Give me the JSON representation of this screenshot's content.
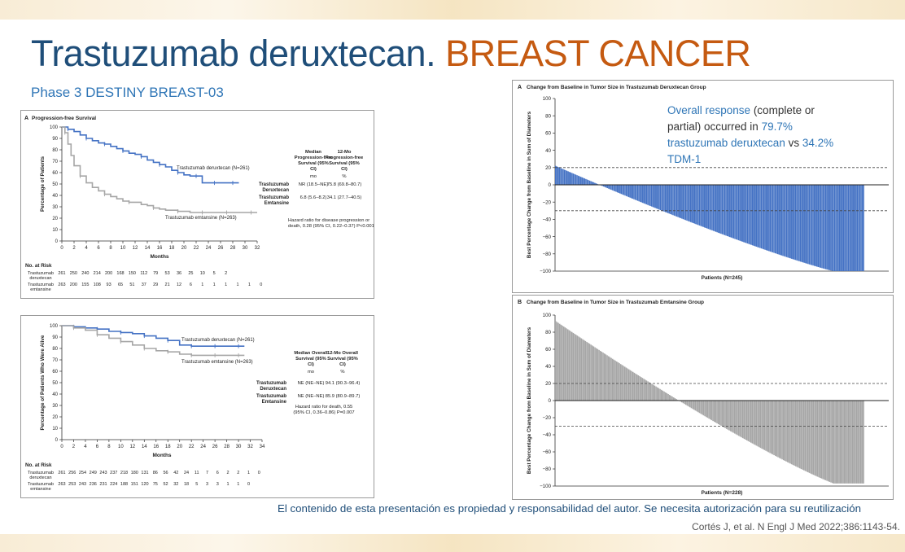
{
  "slide": {
    "title_main": "Trastuzumab deruxtecan.",
    "title_accent": "BREAST CANCER",
    "subtitle": "Phase 3 DESTINY BREAST-03",
    "footer": "El contenido de esta presentación es propiedad y responsabilidad del autor. Se necesita autorización para su reutilización",
    "citation": "Cortés J, et al. N Engl J Med 2022;386:1143-54."
  },
  "colors": {
    "title_main": "#1f4e79",
    "title_accent": "#c55a11",
    "subtitle": "#2e75b6",
    "deruxtecan": "#4472c4",
    "emtansine": "#a6a6a6",
    "callout": "#2e75b6"
  },
  "chart_data": [
    {
      "type": "line",
      "panel_label": "A",
      "title": "Progression-free Survival",
      "xlabel": "Months",
      "ylabel": "Percentage of Patients",
      "xlim": [
        0,
        32
      ],
      "ylim": [
        0,
        100
      ],
      "x_ticks": [
        "0",
        "2",
        "4",
        "6",
        "8",
        "10",
        "12",
        "14",
        "16",
        "18",
        "20",
        "22",
        "24",
        "26",
        "28",
        "30",
        "32"
      ],
      "y_ticks": [
        "0",
        "10",
        "20",
        "30",
        "40",
        "50",
        "60",
        "70",
        "80",
        "90",
        "100"
      ],
      "series": [
        {
          "name": "Trastuzumab deruxtecan (N=261)",
          "x": [
            0,
            1,
            2,
            3,
            4,
            5,
            6,
            7,
            8,
            9,
            10,
            11,
            12,
            13,
            14,
            15,
            16,
            17,
            18,
            19,
            20,
            21,
            22,
            23,
            24,
            25,
            26,
            27,
            28,
            29
          ],
          "y": [
            100,
            98,
            96,
            93,
            90,
            88,
            86,
            85,
            83,
            81,
            79,
            77,
            76,
            74,
            71,
            69,
            67,
            65,
            62,
            60,
            58,
            57,
            57,
            51,
            51,
            51,
            51,
            51,
            51,
            51
          ]
        },
        {
          "name": "Trastuzumab emtansine (N=263)",
          "x": [
            0,
            0.5,
            1,
            1.5,
            2,
            3,
            4,
            5,
            6,
            7,
            8,
            9,
            10,
            11,
            12,
            13,
            14,
            15,
            16,
            17,
            18,
            19,
            20,
            21,
            22,
            23,
            24,
            25,
            26,
            27,
            28,
            29,
            30,
            31,
            32
          ],
          "y": [
            100,
            95,
            85,
            75,
            66,
            57,
            51,
            47,
            44,
            41,
            39,
            37,
            35,
            34,
            34,
            32,
            31,
            29,
            28,
            27,
            27,
            26,
            26,
            25,
            25,
            25,
            25,
            25,
            25,
            25,
            25,
            25,
            25,
            25,
            25
          ]
        }
      ],
      "table": {
        "headers": [
          "Median Progression-free Survival (95% CI)",
          "12-Mo Progression-free Survival (95% CI)"
        ],
        "units": [
          "mo",
          "%"
        ],
        "rows": [
          {
            "label": "Trastuzumab Deruxtecan",
            "label_lines": [
              "Trastuzumab",
              "Deruxtecan"
            ],
            "values": [
              "NR (18.5–NE)",
              "75.8 (69.8–80.7)"
            ]
          },
          {
            "label": "Trastuzumab Emtansine",
            "label_lines": [
              "Trastuzumab",
              "Emtansine"
            ],
            "values": [
              "6.8 (5.6–8.2)",
              "34.1 (27.7–40.5)"
            ]
          }
        ],
        "hazard": "Hazard ratio for disease progression or death, 0.28 (95% CI, 0.22–0.37) P<0.001"
      },
      "at_risk": {
        "title": "No. at Risk",
        "rows": [
          {
            "label": "Trastuzumab deruxtecan",
            "values": [
              "261",
              "250",
              "240",
              "214",
              "200",
              "168",
              "150",
              "112",
              "79",
              "53",
              "36",
              "25",
              "10",
              "5",
              "2"
            ]
          },
          {
            "label": "Trastuzumab emtansine",
            "values": [
              "263",
              "200",
              "155",
              "108",
              "93",
              "65",
              "51",
              "37",
              "29",
              "21",
              "12",
              "6",
              "1",
              "1",
              "1",
              "1",
              "1",
              "0"
            ]
          }
        ]
      }
    },
    {
      "type": "line",
      "panel_label": "",
      "title": "",
      "xlabel": "Months",
      "ylabel": "Percentage of Patients Who Were Alive",
      "xlim": [
        0,
        34
      ],
      "ylim": [
        0,
        100
      ],
      "x_ticks": [
        "0",
        "2",
        "4",
        "6",
        "8",
        "10",
        "12",
        "14",
        "16",
        "18",
        "20",
        "22",
        "24",
        "26",
        "28",
        "30",
        "32",
        "34"
      ],
      "y_ticks": [
        "0",
        "10",
        "20",
        "30",
        "40",
        "50",
        "60",
        "70",
        "80",
        "90",
        "100"
      ],
      "series": [
        {
          "name": "Trastuzumab deruxtecan (N=261)",
          "x": [
            0,
            2,
            4,
            6,
            8,
            10,
            12,
            14,
            16,
            18,
            20,
            22,
            24,
            26,
            28,
            30,
            31
          ],
          "y": [
            100,
            99,
            98,
            97,
            95,
            94,
            93,
            91,
            89,
            87,
            83,
            82,
            82,
            82,
            82,
            82,
            82
          ]
        },
        {
          "name": "Trastuzumab emtansine (N=263)",
          "x": [
            0,
            2,
            4,
            6,
            8,
            10,
            12,
            14,
            16,
            18,
            20,
            22,
            24,
            26,
            28,
            30,
            31
          ],
          "y": [
            100,
            98,
            96,
            92,
            89,
            86,
            83,
            80,
            78,
            77,
            75,
            74,
            74,
            74,
            74,
            74,
            74
          ]
        }
      ],
      "table": {
        "headers": [
          "Median Overall Survival (95% CI)",
          "12-Mo Overall Survival (95% CI)"
        ],
        "units": [
          "mo",
          "%"
        ],
        "rows": [
          {
            "label": "Trastuzumab Deruxtecan",
            "label_lines": [
              "Trastuzumab",
              "Deruxtecan"
            ],
            "values": [
              "NE (NE–NE)",
              "94.1 (90.3–96.4)"
            ]
          },
          {
            "label": "Trastuzumab Emtansine",
            "label_lines": [
              "Trastuzumab",
              "Emtansine"
            ],
            "values": [
              "NE (NE–NE)",
              "85.9 (80.9–89.7)"
            ]
          }
        ],
        "hazard": "Hazard ratio for death, 0.55 (95% CI, 0.36–0.86) P=0.007"
      },
      "at_risk": {
        "title": "No. at Risk",
        "rows": [
          {
            "label": "Trastuzumab deruxtecan",
            "values": [
              "261",
              "256",
              "254",
              "249",
              "243",
              "237",
              "218",
              "180",
              "131",
              "86",
              "56",
              "42",
              "24",
              "11",
              "7",
              "6",
              "2",
              "2",
              "1",
              "0"
            ]
          },
          {
            "label": "Trastuzumab emtansine",
            "values": [
              "263",
              "253",
              "243",
              "236",
              "231",
              "224",
              "188",
              "151",
              "120",
              "75",
              "52",
              "32",
              "18",
              "5",
              "3",
              "3",
              "1",
              "1",
              "0"
            ]
          }
        ]
      }
    },
    {
      "type": "bar",
      "panel_label": "A",
      "title": "Change from Baseline in Tumor Size in Trastuzumab Deruxtecan Group",
      "xlabel": "Patients (N=245)",
      "ylabel": "Best Percentage Change from Baseline in Sum of Diameters",
      "ylim": [
        -100,
        100
      ],
      "y_ticks": [
        "100",
        "80",
        "60",
        "40",
        "20",
        "0",
        "−20",
        "−40",
        "−60",
        "−80",
        "−100"
      ],
      "reference_lines": [
        20,
        -30
      ],
      "n": 245,
      "waterfall": {
        "start": 22,
        "end": -100,
        "plateau_from": 220
      },
      "annotation": {
        "pre": "Overall response",
        "mid": " (complete or partial) occurred in ",
        "pct1": "79.7% trastuzumab deruxtecan",
        "vs": " vs ",
        "pct2": "34.2%",
        "post": " TDM-1"
      }
    },
    {
      "type": "bar",
      "panel_label": "B",
      "title": "Change from Baseline in Tumor Size in Trastuzumab Emtansine Group",
      "xlabel": "Patients (N=228)",
      "ylabel": "Best Percentage Change from Baseline in Sum of Diameters",
      "ylim": [
        -100,
        100
      ],
      "y_ticks": [
        "100",
        "80",
        "60",
        "40",
        "20",
        "0",
        "−20",
        "−40",
        "−60",
        "−80",
        "−100"
      ],
      "reference_lines": [
        20,
        -30
      ],
      "n": 228,
      "waterfall": {
        "start": 93,
        "end": -97,
        "plateau_from": 205
      }
    }
  ]
}
